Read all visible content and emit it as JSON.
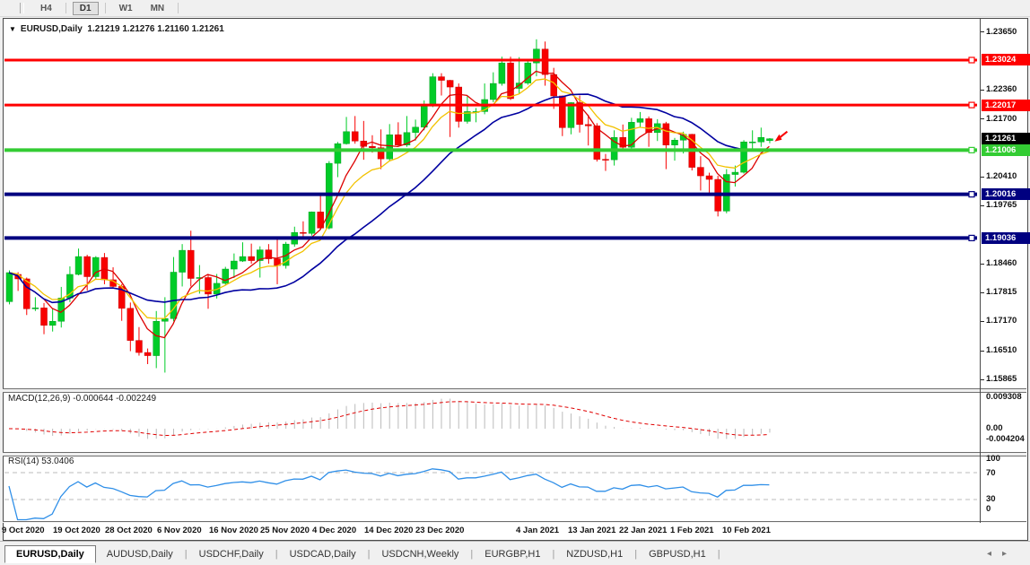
{
  "toolbar": {
    "timeframes": [
      {
        "label": "H4",
        "active": false
      },
      {
        "label": "D1",
        "active": true
      },
      {
        "label": "W1",
        "active": false
      },
      {
        "label": "MN",
        "active": false
      }
    ]
  },
  "chart": {
    "title_symbol": "EURUSD,Daily",
    "title_ohlc": "1.21219 1.21276 1.21160 1.21261",
    "collapse_icon": "▼",
    "price_axis_ticks": [
      "1.23650",
      "1.22360",
      "1.21700",
      "1.20410",
      "1.19765",
      "1.18460",
      "1.17815",
      "1.17170",
      "1.16510",
      "1.15865"
    ],
    "current_price": {
      "label": "1.21261",
      "color": "#000000"
    },
    "levels": [
      {
        "price": 1.23024,
        "label": "1.23024",
        "color": "#FF0000"
      },
      {
        "price": 1.22017,
        "label": "1.22017",
        "color": "#FF0000"
      },
      {
        "price": 1.21006,
        "label": "1.21006",
        "color": "#33CC33"
      },
      {
        "price": 1.20016,
        "label": "1.20016",
        "color": "#000080"
      },
      {
        "price": 1.19036,
        "label": "1.19036",
        "color": "#000080"
      }
    ],
    "colors": {
      "bull": "#00CC28",
      "bull_border": "#00A020",
      "bear": "#F80000",
      "bear_border": "#C80000",
      "ma_fast": "#DD0000",
      "ma_medium": "#F2C200",
      "ma_slow": "#0000A0",
      "macd_bar": "#BBBBBB",
      "macd_signal": "#E00000",
      "rsi_line": "#2F8FE8",
      "rsi_level": "#BBBBBB",
      "marker": "#F80000"
    }
  },
  "macd": {
    "label": "MACD(12,26,9)",
    "values_text": "-0.000644 -0.002249",
    "scale": [
      "0.009308",
      "0.00",
      "-0.004204"
    ]
  },
  "rsi": {
    "label": "RSI(14)",
    "value_text": "53.0406",
    "scale": [
      "100",
      "70",
      "30",
      "0"
    ],
    "levels": [
      70,
      30
    ]
  },
  "date_axis": {
    "labels": [
      "9 Oct 2020",
      "19 Oct 2020",
      "28 Oct 2020",
      "6 Nov 2020",
      "16 Nov 2020",
      "25 Nov 2020",
      "4 Dec 2020",
      "14 Dec 2020",
      "23 Dec 2020",
      "4 Jan 2021",
      "13 Jan 2021",
      "22 Jan 2021",
      "1 Feb 2021",
      "10 Feb 2021"
    ]
  },
  "tabs": [
    {
      "label": "EURUSD,Daily",
      "active": true
    },
    {
      "label": "AUDUSD,Daily",
      "active": false
    },
    {
      "label": "USDCHF,Daily",
      "active": false
    },
    {
      "label": "USDCAD,Daily",
      "active": false
    },
    {
      "label": "USDCNH,Weekly",
      "active": false
    },
    {
      "label": "EURGBP,H1",
      "active": false
    },
    {
      "label": "NZDUSD,H1",
      "active": false
    },
    {
      "label": "GBPUSD,H1",
      "active": false
    }
  ],
  "tab_scroll": {
    "left": "◂",
    "right": "▸"
  },
  "chart_data": {
    "type": "candlestick",
    "symbol": "EURUSD",
    "timeframe": "Daily",
    "x_range": [
      "9 Oct 2020",
      "12 Feb 2021"
    ],
    "y_range": [
      1.15865,
      1.2365
    ],
    "horizontal_levels": [
      1.23024,
      1.22017,
      1.21006,
      1.20016,
      1.19036
    ],
    "moving_averages": [
      {
        "name": "fast",
        "type": "sma",
        "period": 5
      },
      {
        "name": "medium",
        "type": "ema",
        "period": 9
      },
      {
        "name": "slow",
        "type": "sma",
        "period": 20
      }
    ],
    "indicators": {
      "macd": [
        12,
        26,
        9
      ],
      "rsi": 14
    },
    "ohlc": [
      [
        1.1761,
        1.1831,
        1.1755,
        1.1826
      ],
      [
        1.1822,
        1.1827,
        1.1785,
        1.1812
      ],
      [
        1.1812,
        1.1815,
        1.1731,
        1.1745
      ],
      [
        1.1745,
        1.1771,
        1.174,
        1.1747
      ],
      [
        1.1747,
        1.1758,
        1.1688,
        1.1708
      ],
      [
        1.1708,
        1.1745,
        1.1694,
        1.1717
      ],
      [
        1.1717,
        1.1794,
        1.1703,
        1.1769
      ],
      [
        1.1769,
        1.184,
        1.176,
        1.1822
      ],
      [
        1.1822,
        1.188,
        1.182,
        1.1862
      ],
      [
        1.1862,
        1.1866,
        1.1786,
        1.1817
      ],
      [
        1.1817,
        1.1863,
        1.1811,
        1.186
      ],
      [
        1.186,
        1.187,
        1.18,
        1.181
      ],
      [
        1.181,
        1.1838,
        1.1793,
        1.1795
      ],
      [
        1.1795,
        1.18,
        1.1718,
        1.1746
      ],
      [
        1.1746,
        1.1759,
        1.165,
        1.1674
      ],
      [
        1.1674,
        1.1704,
        1.164,
        1.1647
      ],
      [
        1.1647,
        1.1656,
        1.1621,
        1.164
      ],
      [
        1.164,
        1.174,
        1.1612,
        1.1717
      ],
      [
        1.1717,
        1.1771,
        1.1602,
        1.1723
      ],
      [
        1.1723,
        1.1861,
        1.1717,
        1.1827
      ],
      [
        1.1827,
        1.189,
        1.1795,
        1.1876
      ],
      [
        1.1876,
        1.192,
        1.1795,
        1.1813
      ],
      [
        1.1813,
        1.1843,
        1.1779,
        1.1815
      ],
      [
        1.1815,
        1.1823,
        1.1745,
        1.1778
      ],
      [
        1.1778,
        1.1823,
        1.1768,
        1.1802
      ],
      [
        1.1802,
        1.1839,
        1.1799,
        1.1834
      ],
      [
        1.1834,
        1.1869,
        1.1814,
        1.1852
      ],
      [
        1.1852,
        1.1894,
        1.185,
        1.1862
      ],
      [
        1.1862,
        1.1891,
        1.1846,
        1.1853
      ],
      [
        1.1853,
        1.1885,
        1.1815,
        1.1877
      ],
      [
        1.1877,
        1.189,
        1.1846,
        1.1857
      ],
      [
        1.1857,
        1.1906,
        1.18,
        1.1842
      ],
      [
        1.1842,
        1.1895,
        1.1835,
        1.189
      ],
      [
        1.189,
        1.1929,
        1.1884,
        1.1916
      ],
      [
        1.1916,
        1.1941,
        1.1905,
        1.1914
      ],
      [
        1.1914,
        1.1963,
        1.1909,
        1.1962
      ],
      [
        1.1962,
        1.2003,
        1.1922,
        1.1926
      ],
      [
        1.1926,
        1.2076,
        1.1923,
        1.2071
      ],
      [
        1.2071,
        1.2119,
        1.204,
        1.2115
      ],
      [
        1.2115,
        1.2175,
        1.2113,
        1.2142
      ],
      [
        1.2142,
        1.2177,
        1.2115,
        1.2121
      ],
      [
        1.2121,
        1.2166,
        1.2079,
        1.2109
      ],
      [
        1.2109,
        1.2134,
        1.2095,
        1.2106
      ],
      [
        1.2106,
        1.2147,
        1.2058,
        1.2081
      ],
      [
        1.2081,
        1.2159,
        1.2076,
        1.2135
      ],
      [
        1.2135,
        1.2163,
        1.211,
        1.2112
      ],
      [
        1.2112,
        1.2177,
        1.2108,
        1.214
      ],
      [
        1.214,
        1.2169,
        1.2122,
        1.2152
      ],
      [
        1.2152,
        1.2212,
        1.2145,
        1.22
      ],
      [
        1.22,
        1.2273,
        1.2197,
        1.2265
      ],
      [
        1.2265,
        1.2273,
        1.2223,
        1.2257
      ],
      [
        1.2257,
        1.2258,
        1.213,
        1.2242
      ],
      [
        1.2242,
        1.225,
        1.2151,
        1.2165
      ],
      [
        1.2165,
        1.2222,
        1.216,
        1.2187
      ],
      [
        1.2187,
        1.2195,
        1.2163,
        1.2187
      ],
      [
        1.2187,
        1.225,
        1.2181,
        1.2214
      ],
      [
        1.2214,
        1.2275,
        1.2208,
        1.225
      ],
      [
        1.225,
        1.231,
        1.2245,
        1.2296
      ],
      [
        1.2296,
        1.231,
        1.2213,
        1.2216
      ],
      [
        1.2239,
        1.2309,
        1.2227,
        1.2251
      ],
      [
        1.2251,
        1.2303,
        1.2247,
        1.2296
      ],
      [
        1.2296,
        1.2349,
        1.2266,
        1.2327
      ],
      [
        1.2327,
        1.2344,
        1.2245,
        1.227
      ],
      [
        1.227,
        1.2285,
        1.2193,
        1.2222
      ],
      [
        1.2222,
        1.2223,
        1.2132,
        1.2151
      ],
      [
        1.2151,
        1.2208,
        1.2136,
        1.2207
      ],
      [
        1.2207,
        1.2223,
        1.214,
        1.2158
      ],
      [
        1.2158,
        1.218,
        1.2111,
        1.2155
      ],
      [
        1.2155,
        1.2161,
        1.2075,
        1.208
      ],
      [
        1.208,
        1.2092,
        1.2054,
        1.2079
      ],
      [
        1.2079,
        1.2145,
        1.2066,
        1.2129
      ],
      [
        1.2129,
        1.2158,
        1.2102,
        1.2107
      ],
      [
        1.2107,
        1.2173,
        1.2102,
        1.2163
      ],
      [
        1.2163,
        1.2186,
        1.2151,
        1.2171
      ],
      [
        1.2171,
        1.2176,
        1.2108,
        1.214
      ],
      [
        1.214,
        1.217,
        1.2121,
        1.216
      ],
      [
        1.216,
        1.2164,
        1.2058,
        1.2112
      ],
      [
        1.2112,
        1.2128,
        1.2077,
        1.2123
      ],
      [
        1.2123,
        1.2142,
        1.2093,
        1.2136
      ],
      [
        1.2136,
        1.2137,
        1.2055,
        1.2062
      ],
      [
        1.2062,
        1.2087,
        1.201,
        1.2043
      ],
      [
        1.2043,
        1.205,
        1.2002,
        1.2035
      ],
      [
        1.2035,
        1.2043,
        1.1952,
        1.1964
      ],
      [
        1.1964,
        1.2058,
        1.1959,
        1.2046
      ],
      [
        1.2046,
        1.2066,
        1.2019,
        1.2051
      ],
      [
        1.2051,
        1.2123,
        1.2048,
        1.2119
      ],
      [
        1.2119,
        1.2145,
        1.2098,
        1.2119
      ],
      [
        1.2119,
        1.2151,
        1.2108,
        1.2129
      ],
      [
        1.21219,
        1.21276,
        1.2116,
        1.21261
      ]
    ]
  }
}
